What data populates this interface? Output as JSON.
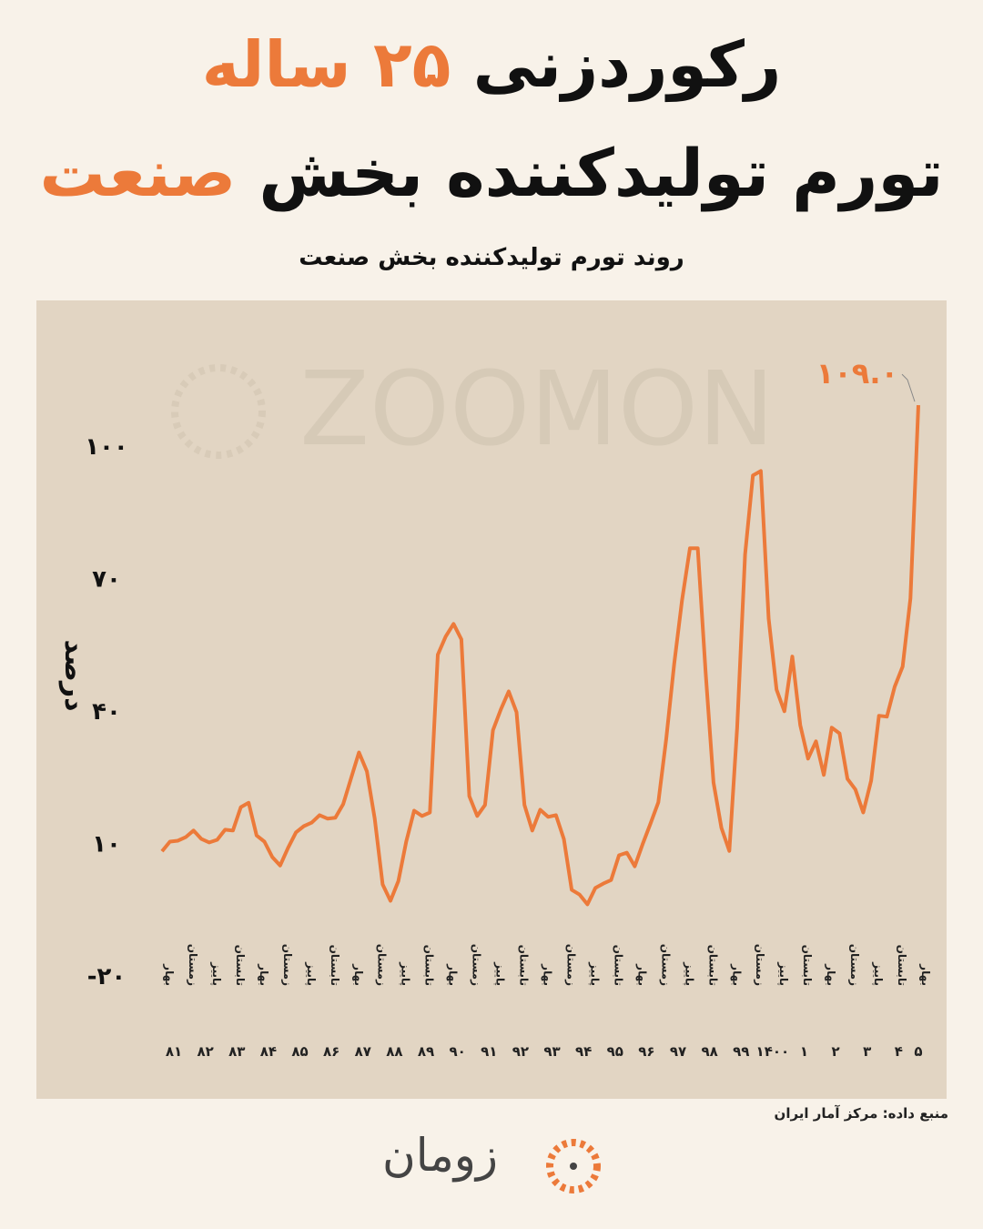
{
  "header": {
    "title_line1": [
      "رکوردزنی",
      "۲۵ ساله"
    ],
    "title_line2": [
      "تورم تولیدکننده بخش",
      "صنعت"
    ],
    "accent_color": "#ec7a3a"
  },
  "watermark": "ZOOMON",
  "footer": {
    "source": "منبع داده: مرکز آمار ایران",
    "logo": "زومان"
  },
  "chart_data": {
    "type": "line",
    "title": "روند تورم تولیدکننده بخش صنعت",
    "y_label": "درصد",
    "color": "#ec7a3a",
    "ylim": [
      -20,
      115
    ],
    "yticks": [
      {
        "value": -20,
        "label": "-۲۰"
      },
      {
        "value": 10,
        "label": "۱۰"
      },
      {
        "value": 40,
        "label": "۴۰"
      },
      {
        "value": 70,
        "label": "۷۰"
      },
      {
        "value": 100,
        "label": "۱۰۰"
      }
    ],
    "categories": [
      "بهار",
      null,
      null,
      "زمستان",
      null,
      null,
      "پاییز",
      null,
      null,
      "تابستان",
      null,
      null,
      "بهار",
      null,
      null,
      "زمستان",
      null,
      null,
      "پاییز",
      null,
      null,
      "تابستان",
      null,
      null,
      "بهار",
      null,
      null,
      "زمستان",
      null,
      null,
      "پاییز",
      null,
      null,
      "تابستان",
      null,
      null,
      "بهار",
      null,
      null,
      "زمستان",
      null,
      null,
      "پاییز",
      null,
      null,
      "تابستان",
      null,
      null,
      "بهار",
      null,
      null,
      "زمستان",
      null,
      null,
      "پاییز",
      null,
      null,
      "تابستان",
      null,
      null,
      "بهار",
      null,
      null,
      "زمستان",
      null,
      null,
      "پاییز",
      null,
      null,
      "تابستان",
      null,
      null,
      "بهار",
      null,
      null,
      "زمستان",
      null,
      null,
      "پاییز",
      null,
      null,
      "تابستان",
      null,
      null,
      "بهار",
      null,
      null,
      "زمستان",
      null,
      null,
      "پاییز",
      null,
      null,
      "تابستان",
      null,
      null,
      "بهار"
    ],
    "years": [
      "۸۱",
      "۸۲",
      "۸۳",
      "۸۴",
      "۸۵",
      "۸۶",
      "۸۷",
      "۸۸",
      "۸۹",
      "۹۰",
      "۹۱",
      "۹۲",
      "۹۳",
      "۹۴",
      "۹۵",
      "۹۶",
      "۹۷",
      "۹۸",
      "۹۹",
      "۱۴۰۰",
      "۱",
      "۲",
      "۳",
      "۴",
      "۵"
    ],
    "values": [
      8,
      10.2,
      10.4,
      11.2,
      12.7,
      10.8,
      10,
      10.6,
      12.9,
      12.7,
      18,
      19,
      11.6,
      10.2,
      6.7,
      4.8,
      8.8,
      12.3,
      13.7,
      14.5,
      16.2,
      15.4,
      15.6,
      18.7,
      24.6,
      30.4,
      26.1,
      15.4,
      0.5,
      -3.2,
      1.3,
      10.2,
      17.2,
      16,
      16.8,
      52.5,
      56.6,
      59.5,
      56,
      20.5,
      16,
      18.5,
      35.4,
      40.1,
      44.2,
      39.5,
      18.5,
      12.7,
      17.4,
      15.8,
      16.2,
      10.8,
      -0.7,
      -1.8,
      -4,
      -0.3,
      0.7,
      1.5,
      7.1,
      7.7,
      4.6,
      9.6,
      14.3,
      19.1,
      33.5,
      50.4,
      64.8,
      76.6,
      76.6,
      48.4,
      23.6,
      13.3,
      8.1,
      36,
      75.2,
      93.1,
      94.1,
      60.7,
      44.6,
      39.7,
      52.1,
      36.6,
      29,
      32.9,
      25.3,
      36,
      34.7,
      24.4,
      22,
      16.8,
      24,
      38.7,
      38.5,
      45.3,
      49.8,
      65.3,
      109
    ],
    "value_labels": [
      null,
      null,
      null,
      null,
      null,
      null,
      null,
      null,
      null,
      null,
      null,
      null,
      null,
      null,
      null,
      null,
      null,
      null,
      null,
      null,
      null,
      null,
      null,
      null,
      null,
      null,
      null,
      null,
      null,
      null,
      null,
      null,
      null,
      null,
      null,
      null,
      null,
      null,
      null,
      null,
      null,
      null,
      null,
      null,
      null,
      null,
      null,
      null,
      null,
      null,
      null,
      null,
      null,
      null,
      null,
      null,
      null,
      null,
      null,
      null,
      null,
      null,
      null,
      null,
      null,
      null,
      null,
      null,
      null,
      null,
      null,
      null,
      null,
      null,
      null,
      null,
      null,
      null,
      null,
      null,
      null,
      null,
      null,
      null,
      null,
      null,
      null,
      null,
      null,
      null,
      null,
      null,
      null,
      null,
      null,
      null,
      "۱۰۹.۰"
    ]
  }
}
